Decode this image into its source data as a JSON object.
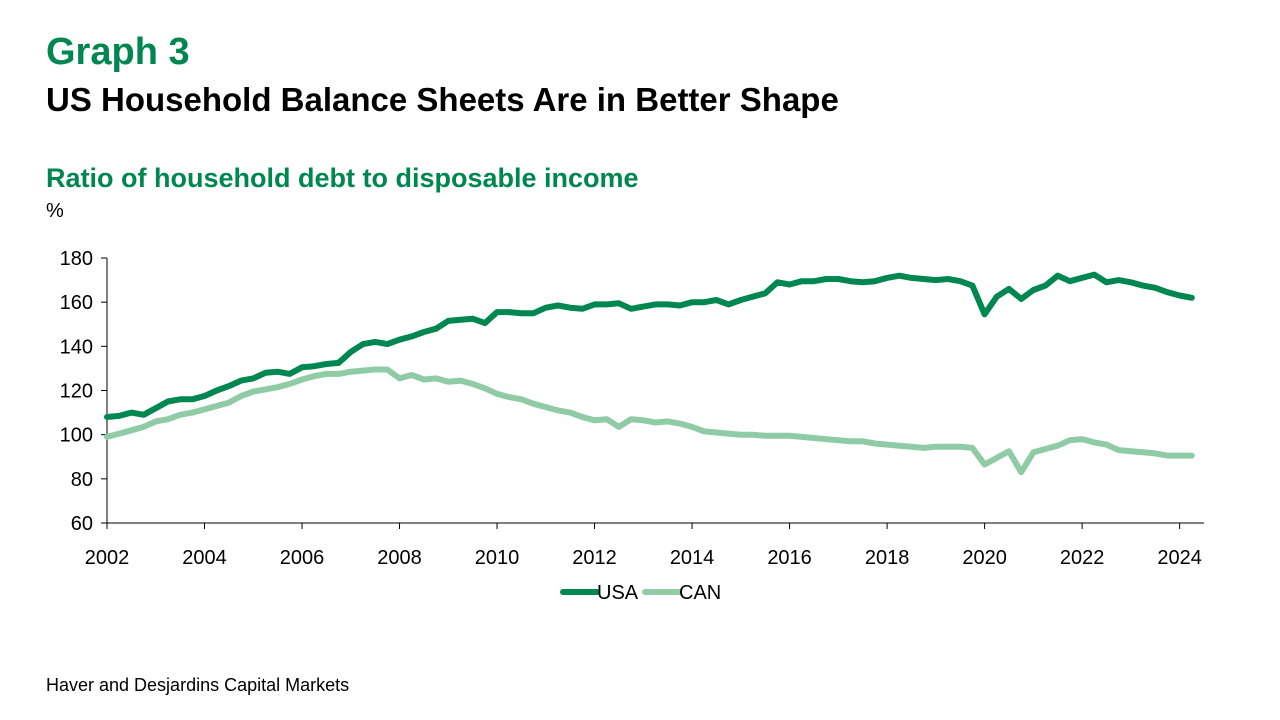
{
  "header": {
    "graph_label": "Graph 3",
    "headline": "US Household Balance Sheets Are in Better Shape",
    "subtitle": "Ratio of household debt to disposable income",
    "unit": "%"
  },
  "footer": {
    "source": "Haver and Desjardins Capital Markets"
  },
  "colors": {
    "usa": "#008751",
    "can": "#8fcca6",
    "axis": "#000000"
  },
  "chart_data": {
    "type": "line",
    "title": "Ratio of household debt to disposable income",
    "ylabel": "%",
    "xlabel": "",
    "xlim": [
      2002,
      2024.5
    ],
    "ylim": [
      60,
      180
    ],
    "x_ticks": [
      "2002",
      "2004",
      "2006",
      "2008",
      "2010",
      "2012",
      "2014",
      "2016",
      "2018",
      "2020",
      "2022",
      "2024"
    ],
    "y_ticks": [
      "60",
      "80",
      "100",
      "120",
      "140",
      "160",
      "180"
    ],
    "grid": false,
    "legend": "bottom",
    "series": [
      {
        "name": "USA",
        "x": [
          2002.0,
          2002.25,
          2002.5,
          2002.75,
          2003.0,
          2003.25,
          2003.5,
          2003.75,
          2004.0,
          2004.25,
          2004.5,
          2004.75,
          2005.0,
          2005.25,
          2005.5,
          2005.75,
          2006.0,
          2006.25,
          2006.5,
          2006.75,
          2007.0,
          2007.25,
          2007.5,
          2007.75,
          2008.0,
          2008.25,
          2008.5,
          2008.75,
          2009.0,
          2009.25,
          2009.5,
          2009.75,
          2010.0,
          2010.25,
          2010.5,
          2010.75,
          2011.0,
          2011.25,
          2011.5,
          2011.75,
          2012.0,
          2012.25,
          2012.5,
          2012.75,
          2013.0,
          2013.25,
          2013.5,
          2013.75,
          2014.0,
          2014.25,
          2014.5,
          2014.75,
          2015.0,
          2015.25,
          2015.5,
          2015.75,
          2016.0,
          2016.25,
          2016.5,
          2016.75,
          2017.0,
          2017.25,
          2017.5,
          2017.75,
          2018.0,
          2018.25,
          2018.5,
          2018.75,
          2019.0,
          2019.25,
          2019.5,
          2019.75,
          2020.0,
          2020.25,
          2020.5,
          2020.75,
          2021.0,
          2021.25,
          2021.5,
          2021.75,
          2022.0,
          2022.25,
          2022.5,
          2022.75,
          2023.0,
          2023.25,
          2023.5,
          2023.75,
          2024.0,
          2024.25
        ],
        "values": [
          108,
          108.5,
          110,
          109,
          112,
          115,
          116,
          116,
          117.5,
          120,
          122,
          124.5,
          125.5,
          128,
          128.5,
          127.5,
          130.5,
          131,
          132,
          132.5,
          137.5,
          141,
          142,
          141,
          143,
          144.5,
          146.5,
          148,
          151.5,
          152,
          152.5,
          150.5,
          155.5,
          155.5,
          155,
          155,
          157.5,
          158.5,
          157.5,
          157,
          159,
          159,
          159.5,
          157,
          158,
          159,
          159,
          158.5,
          160,
          160,
          161,
          159,
          161,
          162.5,
          164,
          169,
          168,
          169.5,
          169.5,
          170.5,
          170.5,
          169.5,
          169,
          169.5,
          171,
          172,
          171,
          170.5,
          170,
          170.5,
          169.5,
          167.5,
          154.5,
          162.5,
          166,
          161.5,
          165.5,
          167.5,
          172,
          169.5,
          171,
          172.5,
          169,
          170,
          169,
          167.5,
          166.5,
          164.5,
          163,
          162
        ]
      },
      {
        "name": "CAN",
        "x": [
          2002.0,
          2002.25,
          2002.5,
          2002.75,
          2003.0,
          2003.25,
          2003.5,
          2003.75,
          2004.0,
          2004.25,
          2004.5,
          2004.75,
          2005.0,
          2005.25,
          2005.5,
          2005.75,
          2006.0,
          2006.25,
          2006.5,
          2006.75,
          2007.0,
          2007.25,
          2007.5,
          2007.75,
          2008.0,
          2008.25,
          2008.5,
          2008.75,
          2009.0,
          2009.25,
          2009.5,
          2009.75,
          2010.0,
          2010.25,
          2010.5,
          2010.75,
          2011.0,
          2011.25,
          2011.5,
          2011.75,
          2012.0,
          2012.25,
          2012.5,
          2012.75,
          2013.0,
          2013.25,
          2013.5,
          2013.75,
          2014.0,
          2014.25,
          2014.5,
          2014.75,
          2015.0,
          2015.25,
          2015.5,
          2015.75,
          2016.0,
          2016.25,
          2016.5,
          2016.75,
          2017.0,
          2017.25,
          2017.5,
          2017.75,
          2018.0,
          2018.25,
          2018.5,
          2018.75,
          2019.0,
          2019.25,
          2019.5,
          2019.75,
          2020.0,
          2020.25,
          2020.5,
          2020.75,
          2021.0,
          2021.25,
          2021.5,
          2021.75,
          2022.0,
          2022.25,
          2022.5,
          2022.75,
          2023.0,
          2023.25,
          2023.5,
          2023.75,
          2024.0,
          2024.25
        ],
        "values": [
          99,
          100.5,
          102,
          103.5,
          106,
          107,
          109,
          110,
          111.5,
          113,
          114.5,
          117.5,
          119.5,
          120.5,
          121.5,
          123,
          125,
          126.5,
          127.5,
          127.5,
          128.5,
          129,
          129.5,
          129.5,
          125.5,
          127,
          125,
          125.5,
          124,
          124.5,
          123,
          121,
          118.5,
          117,
          116,
          114,
          112.5,
          111,
          110,
          108,
          106.5,
          107,
          103.5,
          107,
          106.5,
          105.5,
          106,
          105,
          103.5,
          101.5,
          101,
          100.5,
          100,
          100,
          99.5,
          99.5,
          99.5,
          99,
          98.5,
          98,
          97.5,
          97,
          97,
          96,
          95.5,
          95,
          94.5,
          94,
          94.5,
          94.5,
          94.5,
          94,
          86.5,
          89.5,
          92.5,
          83,
          92,
          93.5,
          95,
          97.5,
          98,
          96.5,
          95.5,
          93,
          92.5,
          92,
          91.5,
          90.5,
          90.5,
          90.5
        ]
      }
    ]
  }
}
